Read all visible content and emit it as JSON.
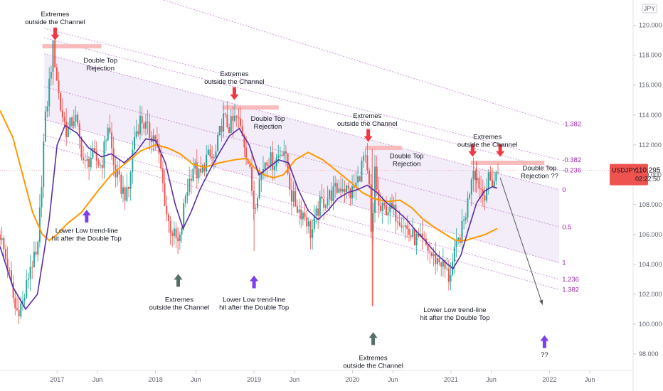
{
  "chart_data": {
    "type": "candlestick",
    "symbol": "USDJPY",
    "currency": "JPY",
    "last_price": "110.295",
    "countdown": "02:22:50",
    "y_ticks": [
      "98.000",
      "100.000",
      "102.000",
      "104.000",
      "106.000",
      "108.000",
      "110.000",
      "112.000",
      "114.000",
      "116.000",
      "118.000",
      "120.000"
    ],
    "ylim": [
      96.9,
      121.7
    ],
    "x_ticks": [
      {
        "label": "2017",
        "date": 2017.0
      },
      {
        "label": "Jun",
        "date": 2017.41
      },
      {
        "label": "2018",
        "date": 2018.0
      },
      {
        "label": "Jun",
        "date": 2018.41
      },
      {
        "label": "2019",
        "date": 2019.0
      },
      {
        "label": "Jun",
        "date": 2019.41
      },
      {
        "label": "2020",
        "date": 2020.0
      },
      {
        "label": "Jun",
        "date": 2020.41
      },
      {
        "label": "2021",
        "date": 2021.0
      },
      {
        "label": "Jun",
        "date": 2021.41
      },
      {
        "label": "2022",
        "date": 2022.0
      },
      {
        "label": "Jun",
        "date": 2022.41
      }
    ],
    "xlim": [
      2016.42,
      2022.85
    ],
    "price_path": [
      [
        2016.42,
        106.0
      ],
      [
        2016.5,
        103.8
      ],
      [
        2016.58,
        100.8
      ],
      [
        2016.66,
        101.5
      ],
      [
        2016.73,
        104.0
      ],
      [
        2016.8,
        104.5
      ],
      [
        2016.87,
        113.0
      ],
      [
        2016.96,
        118.6
      ],
      [
        2017.03,
        114.6
      ],
      [
        2017.1,
        112.8
      ],
      [
        2017.18,
        114.0
      ],
      [
        2017.28,
        110.5
      ],
      [
        2017.35,
        111.3
      ],
      [
        2017.45,
        110.6
      ],
      [
        2017.52,
        113.5
      ],
      [
        2017.58,
        110.3
      ],
      [
        2017.66,
        109.0
      ],
      [
        2017.72,
        108.5
      ],
      [
        2017.78,
        112.5
      ],
      [
        2017.85,
        113.8
      ],
      [
        2017.93,
        112.8
      ],
      [
        2018.0,
        112.5
      ],
      [
        2018.05,
        110.5
      ],
      [
        2018.12,
        107.0
      ],
      [
        2018.18,
        106.0
      ],
      [
        2018.24,
        105.2
      ],
      [
        2018.3,
        108.5
      ],
      [
        2018.38,
        110.6
      ],
      [
        2018.45,
        109.8
      ],
      [
        2018.52,
        111.2
      ],
      [
        2018.6,
        111.0
      ],
      [
        2018.68,
        113.8
      ],
      [
        2018.75,
        113.2
      ],
      [
        2018.82,
        113.8
      ],
      [
        2018.88,
        112.9
      ],
      [
        2018.95,
        110.5
      ],
      [
        2019.0,
        107.8
      ],
      [
        2019.05,
        109.5
      ],
      [
        2019.12,
        111.2
      ],
      [
        2019.2,
        110.8
      ],
      [
        2019.3,
        111.9
      ],
      [
        2019.38,
        108.6
      ],
      [
        2019.45,
        107.7
      ],
      [
        2019.52,
        107.3
      ],
      [
        2019.58,
        106.0
      ],
      [
        2019.66,
        107.9
      ],
      [
        2019.75,
        108.5
      ],
      [
        2019.82,
        108.9
      ],
      [
        2019.9,
        109.3
      ],
      [
        2019.98,
        108.7
      ],
      [
        2020.05,
        109.5
      ],
      [
        2020.12,
        111.3
      ],
      [
        2020.17,
        109.0
      ],
      [
        2020.2,
        104.2
      ],
      [
        2020.22,
        111.0
      ],
      [
        2020.27,
        107.5
      ],
      [
        2020.35,
        107.8
      ],
      [
        2020.42,
        107.5
      ],
      [
        2020.5,
        107.0
      ],
      [
        2020.58,
        106.0
      ],
      [
        2020.66,
        105.6
      ],
      [
        2020.75,
        105.2
      ],
      [
        2020.82,
        104.4
      ],
      [
        2020.9,
        104.2
      ],
      [
        2020.98,
        103.1
      ],
      [
        2021.05,
        105.0
      ],
      [
        2021.12,
        106.5
      ],
      [
        2021.18,
        108.5
      ],
      [
        2021.22,
        110.7
      ],
      [
        2021.28,
        109.5
      ],
      [
        2021.33,
        108.6
      ],
      [
        2021.38,
        109.6
      ],
      [
        2021.43,
        109.5
      ],
      [
        2021.48,
        110.3
      ]
    ],
    "ema_short": [
      [
        2016.42,
        105.2
      ],
      [
        2016.55,
        102.5
      ],
      [
        2016.68,
        101.0
      ],
      [
        2016.8,
        102.0
      ],
      [
        2016.92,
        107.0
      ],
      [
        2017.0,
        112.0
      ],
      [
        2017.08,
        113.3
      ],
      [
        2017.2,
        112.8
      ],
      [
        2017.32,
        111.8
      ],
      [
        2017.45,
        111.2
      ],
      [
        2017.55,
        111.4
      ],
      [
        2017.68,
        110.8
      ],
      [
        2017.8,
        111.5
      ],
      [
        2017.9,
        112.4
      ],
      [
        2018.0,
        112.3
      ],
      [
        2018.1,
        110.8
      ],
      [
        2018.2,
        108.0
      ],
      [
        2018.28,
        106.4
      ],
      [
        2018.36,
        107.5
      ],
      [
        2018.45,
        109.0
      ],
      [
        2018.55,
        110.3
      ],
      [
        2018.65,
        111.5
      ],
      [
        2018.75,
        112.6
      ],
      [
        2018.85,
        113.1
      ],
      [
        2018.95,
        112.0
      ],
      [
        2019.05,
        110.0
      ],
      [
        2019.15,
        110.5
      ],
      [
        2019.25,
        111.0
      ],
      [
        2019.35,
        110.8
      ],
      [
        2019.45,
        109.0
      ],
      [
        2019.55,
        107.6
      ],
      [
        2019.65,
        107.0
      ],
      [
        2019.75,
        107.6
      ],
      [
        2019.85,
        108.4
      ],
      [
        2019.95,
        108.8
      ],
      [
        2020.05,
        109.0
      ],
      [
        2020.15,
        109.3
      ],
      [
        2020.25,
        108.8
      ],
      [
        2020.35,
        108.1
      ],
      [
        2020.45,
        107.6
      ],
      [
        2020.55,
        107.0
      ],
      [
        2020.65,
        106.2
      ],
      [
        2020.75,
        105.5
      ],
      [
        2020.85,
        104.7
      ],
      [
        2020.95,
        104.1
      ],
      [
        2021.02,
        103.7
      ],
      [
        2021.1,
        104.6
      ],
      [
        2021.18,
        106.4
      ],
      [
        2021.26,
        108.1
      ],
      [
        2021.34,
        108.9
      ],
      [
        2021.42,
        109.2
      ],
      [
        2021.47,
        109.1
      ]
    ],
    "ema_long": [
      [
        2016.42,
        114.3
      ],
      [
        2016.55,
        112.5
      ],
      [
        2016.65,
        110.0
      ],
      [
        2016.75,
        107.5
      ],
      [
        2016.85,
        106.0
      ],
      [
        2016.92,
        105.6
      ],
      [
        2017.0,
        106.0
      ],
      [
        2017.1,
        106.7
      ],
      [
        2017.25,
        107.5
      ],
      [
        2017.4,
        108.8
      ],
      [
        2017.55,
        110.0
      ],
      [
        2017.7,
        110.8
      ],
      [
        2017.85,
        111.6
      ],
      [
        2018.0,
        112.0
      ],
      [
        2018.12,
        111.8
      ],
      [
        2018.25,
        111.4
      ],
      [
        2018.38,
        110.7
      ],
      [
        2018.5,
        110.5
      ],
      [
        2018.65,
        110.8
      ],
      [
        2018.8,
        111.0
      ],
      [
        2018.92,
        111.1
      ],
      [
        2019.0,
        110.5
      ],
      [
        2019.1,
        110.0
      ],
      [
        2019.2,
        109.8
      ],
      [
        2019.3,
        110.0
      ],
      [
        2019.42,
        111.0
      ],
      [
        2019.55,
        111.5
      ],
      [
        2019.7,
        111.0
      ],
      [
        2019.85,
        110.2
      ],
      [
        2019.98,
        109.5
      ],
      [
        2020.1,
        108.8
      ],
      [
        2020.22,
        108.4
      ],
      [
        2020.35,
        108.2
      ],
      [
        2020.48,
        108.3
      ],
      [
        2020.6,
        107.8
      ],
      [
        2020.72,
        107.0
      ],
      [
        2020.85,
        106.4
      ],
      [
        2020.97,
        105.9
      ],
      [
        2021.05,
        105.6
      ],
      [
        2021.15,
        105.6
      ],
      [
        2021.25,
        105.8
      ],
      [
        2021.35,
        106.0
      ],
      [
        2021.47,
        106.4
      ]
    ],
    "channel": {
      "start_date": 2016.87,
      "end_date": 2022.1,
      "levels": [
        {
          "label": "-1.382",
          "start": 124.2,
          "end": 113.4
        },
        {
          "label": "-0.382",
          "start": 119.8,
          "end": 111.0
        },
        {
          "label": "-0.236",
          "start": 119.15,
          "end": 110.3
        },
        {
          "label": "0",
          "start": 118.1,
          "end": 109.0
        },
        {
          "label": "0.5",
          "start": 115.9,
          "end": 106.5
        },
        {
          "label": "1",
          "start": 113.7,
          "end": 104.1
        },
        {
          "label": "1.236",
          "start": 112.65,
          "end": 103.0
        },
        {
          "label": "1.382",
          "start": 112.0,
          "end": 102.3
        }
      ],
      "shaded_from_level": "0",
      "shaded_to_level": "1"
    },
    "resistance_zones": [
      {
        "from": 2016.85,
        "to": 2017.45,
        "price": 118.6
      },
      {
        "from": 2018.68,
        "to": 2019.25,
        "price": 114.5
      },
      {
        "from": 2020.13,
        "to": 2020.5,
        "price": 111.8
      },
      {
        "from": 2021.2,
        "to": 2021.95,
        "price": 110.8
      }
    ],
    "arrows": [
      {
        "color": "red",
        "date": 2016.98,
        "price": 119.0,
        "direction": "down"
      },
      {
        "color": "red",
        "date": 2018.8,
        "price": 115.0,
        "direction": "down"
      },
      {
        "color": "red",
        "date": 2020.16,
        "price": 112.2,
        "direction": "down"
      },
      {
        "color": "red",
        "date": 2021.22,
        "price": 111.2,
        "direction": "down"
      },
      {
        "color": "red",
        "date": 2021.5,
        "price": 111.2,
        "direction": "down"
      },
      {
        "color": "purple",
        "date": 2017.3,
        "price": 106.8,
        "direction": "up"
      },
      {
        "color": "purple",
        "date": 2019.0,
        "price": 102.4,
        "direction": "up"
      },
      {
        "color": "purple",
        "date": 2021.95,
        "price": 98.4,
        "direction": "up"
      },
      {
        "color": "gray",
        "date": 2018.23,
        "price": 102.5,
        "direction": "up"
      },
      {
        "color": "gray",
        "date": 2020.21,
        "price": 98.6,
        "direction": "up"
      }
    ],
    "projection": {
      "from": [
        2021.5,
        109.8
      ],
      "to": [
        2021.93,
        101.3
      ]
    },
    "annotations": [
      {
        "lines": [
          "Extremes",
          "outside the Channel"
        ],
        "date": 2016.98,
        "price": 120.6
      },
      {
        "lines": [
          "Double Top",
          "Rejection"
        ],
        "date": 2017.44,
        "price": 117.5
      },
      {
        "lines": [
          "Extremes",
          "outside the Channel"
        ],
        "date": 2018.8,
        "price": 116.6
      },
      {
        "lines": [
          "Double Top",
          "Rejection"
        ],
        "date": 2019.14,
        "price": 113.6
      },
      {
        "lines": [
          "Extremes",
          "outside the Channel"
        ],
        "date": 2020.15,
        "price": 113.8
      },
      {
        "lines": [
          "Double Top",
          "Rejection"
        ],
        "date": 2020.55,
        "price": 111.1
      },
      {
        "lines": [
          "Extremes",
          "outside the Channel"
        ],
        "date": 2021.37,
        "price": 112.4
      },
      {
        "lines": [
          "Double Top",
          "Rejection ??"
        ],
        "date": 2021.9,
        "price": 110.3
      },
      {
        "lines": [
          "Lower Low trend-line",
          "hit after the Double Top"
        ],
        "date": 2017.3,
        "price": 106.1
      },
      {
        "lines": [
          "Extremes",
          "outside the Channel"
        ],
        "date": 2018.24,
        "price": 101.5
      },
      {
        "lines": [
          "Lower Low trend-line",
          "hit after the Double Top"
        ],
        "date": 2019.0,
        "price": 101.5
      },
      {
        "lines": [
          "Lower Low trend-line",
          "hit after the Double Top"
        ],
        "date": 2021.04,
        "price": 100.8
      },
      {
        "lines": [
          "Extremes",
          "outside the Channel"
        ],
        "date": 2020.21,
        "price": 97.6
      },
      {
        "lines": [
          "??"
        ],
        "date": 2021.95,
        "price": 97.8
      }
    ],
    "colors": {
      "up": "#26a69a",
      "down": "#ef5350",
      "ema_short": "#5b2c9f",
      "ema_long": "#ff9800",
      "channel_line": "#ce93d8",
      "channel_fill": "#ede7f6",
      "fib_label": "#9c27b0",
      "zone": "#f8b4b4",
      "arrow_red": "#f23645",
      "arrow_purple": "#7e3ff2",
      "arrow_gray": "#546e6a",
      "price_tag": "#ef5350",
      "price_line": "#ef9a9a"
    }
  }
}
